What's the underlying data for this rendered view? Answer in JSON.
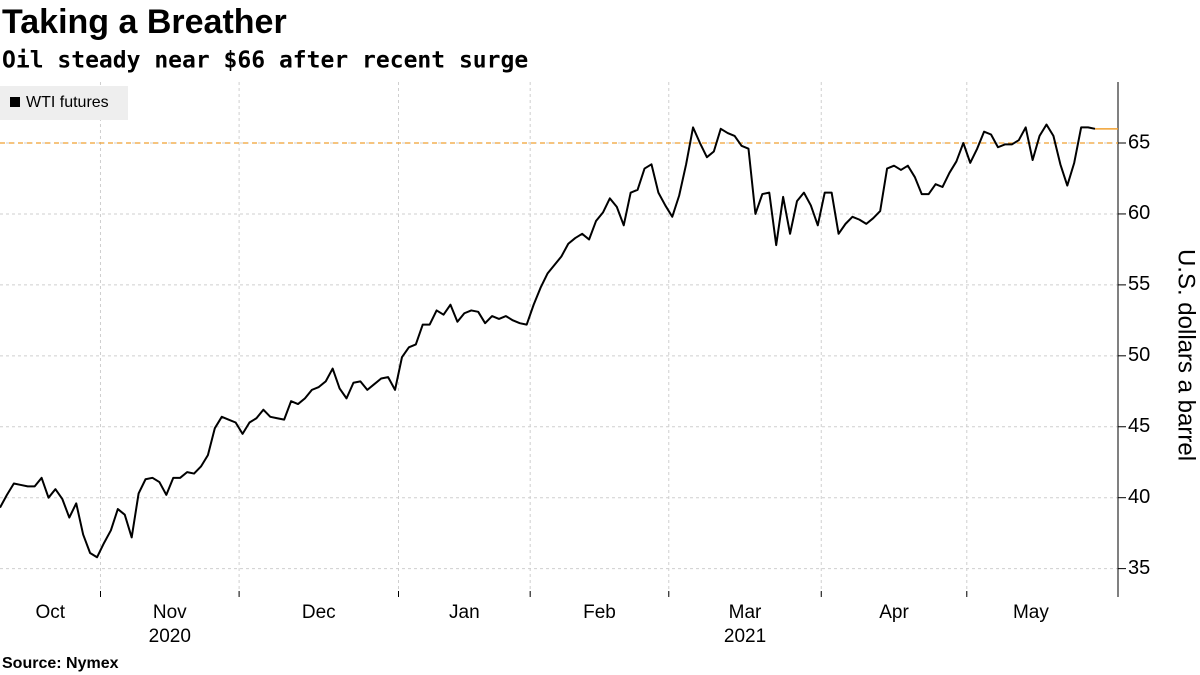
{
  "chart_data": {
    "type": "line",
    "title": "Taking a Breather",
    "subtitle": "Oil steady near $66 after recent surge",
    "source": "Source: Nymex",
    "y_axis_label": "U.S. dollars a barrel",
    "categories": [
      "Oct",
      null,
      null,
      null,
      null,
      null,
      null,
      null,
      null,
      null,
      null,
      null,
      null,
      null,
      null,
      "Nov",
      null,
      null,
      null,
      null,
      null,
      null,
      null,
      null,
      null,
      null,
      null,
      null,
      null,
      null,
      null,
      null,
      null,
      null,
      null,
      "Dec",
      null,
      null,
      null,
      null,
      null,
      null,
      null,
      null,
      null,
      null,
      null,
      null,
      null,
      null,
      null,
      null,
      null,
      null,
      null,
      null,
      null,
      null,
      "Jan",
      null,
      null,
      null,
      null,
      null,
      null,
      null,
      null,
      null,
      null,
      null,
      null,
      null,
      null,
      null,
      null,
      null,
      null,
      "Feb",
      null,
      null,
      null,
      null,
      null,
      null,
      null,
      null,
      null,
      null,
      null,
      null,
      null,
      null,
      null,
      null,
      null,
      null,
      null,
      "Mar",
      null,
      null,
      null,
      null,
      null,
      null,
      null,
      null,
      null,
      null,
      null,
      null,
      null,
      null,
      null,
      null,
      null,
      null,
      null,
      null,
      null,
      "Apr",
      null,
      null,
      null,
      null,
      null,
      null,
      null,
      null,
      null,
      null,
      null,
      null,
      null,
      null,
      null,
      null,
      null,
      null,
      null,
      null,
      "May",
      null,
      null,
      null,
      null,
      null,
      null,
      null,
      null,
      null,
      null,
      null,
      null,
      null,
      null,
      null,
      null,
      null,
      null
    ],
    "year_labels": [
      {
        "label": "2020",
        "month": "Nov"
      },
      {
        "label": "2021",
        "month": "Mar"
      }
    ],
    "series": [
      {
        "name": "WTI futures",
        "color": "#000000",
        "values": [
          39.3,
          40.2,
          41.0,
          40.9,
          40.8,
          40.8,
          41.4,
          40.0,
          40.6,
          39.9,
          38.6,
          39.6,
          37.4,
          36.1,
          35.8,
          36.8,
          37.7,
          39.2,
          38.8,
          37.2,
          40.3,
          41.3,
          41.4,
          41.1,
          40.2,
          41.4,
          41.4,
          41.8,
          41.7,
          42.2,
          43.0,
          44.9,
          45.7,
          45.5,
          45.3,
          44.5,
          45.3,
          45.6,
          46.2,
          45.7,
          45.6,
          45.5,
          46.8,
          46.6,
          47.0,
          47.6,
          47.8,
          48.2,
          49.1,
          47.7,
          47.0,
          48.1,
          48.2,
          47.6,
          48.0,
          48.4,
          48.5,
          47.6,
          49.9,
          50.6,
          50.8,
          52.2,
          52.2,
          53.2,
          52.9,
          53.6,
          52.4,
          53.0,
          53.2,
          53.1,
          52.3,
          52.8,
          52.6,
          52.8,
          52.5,
          52.3,
          52.2,
          53.6,
          54.8,
          55.8,
          56.4,
          57.0,
          57.9,
          58.3,
          58.6,
          58.2,
          59.5,
          60.1,
          61.1,
          60.5,
          59.2,
          61.5,
          61.7,
          63.2,
          63.5,
          61.5,
          60.6,
          59.8,
          61.3,
          63.5,
          66.1,
          65.0,
          64.0,
          64.4,
          66.0,
          65.7,
          65.5,
          64.8,
          64.6,
          60.0,
          61.4,
          61.5,
          57.8,
          61.2,
          58.6,
          60.9,
          61.5,
          60.6,
          59.2,
          61.5,
          61.5,
          58.6,
          59.3,
          59.8,
          59.6,
          59.3,
          59.7,
          60.2,
          63.2,
          63.4,
          63.1,
          63.4,
          62.6,
          61.4,
          61.4,
          62.1,
          61.9,
          62.9,
          63.7,
          65.0,
          63.6,
          64.6,
          65.8,
          65.6,
          64.7,
          64.9,
          64.9,
          65.2,
          66.1,
          63.8,
          65.5,
          66.3,
          65.5,
          63.5,
          62.0,
          63.6,
          66.1,
          66.1,
          66.0
        ]
      }
    ],
    "reference_line": {
      "value": 65,
      "color": "#f0a030"
    },
    "ylim": [
      33,
      69.3
    ],
    "yticks": [
      35,
      40,
      45,
      50,
      55,
      60,
      65
    ],
    "grid": true
  }
}
